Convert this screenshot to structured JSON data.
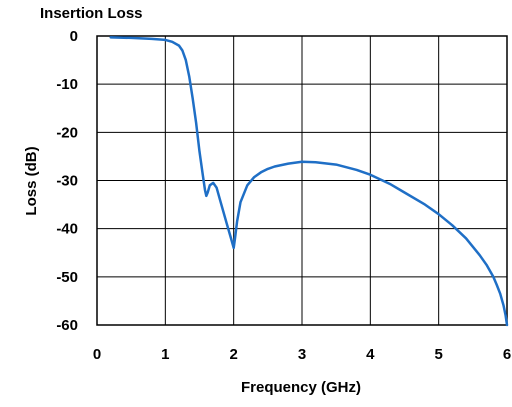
{
  "chart_data": {
    "type": "line",
    "title": "Insertion Loss",
    "xlabel": "Frequency (GHz)",
    "ylabel": "Loss (dB)",
    "xlim": [
      0,
      6
    ],
    "ylim": [
      -60,
      0
    ],
    "xticks": [
      0,
      1,
      2,
      3,
      4,
      5,
      6
    ],
    "yticks": [
      0,
      -10,
      -20,
      -30,
      -40,
      -50,
      -60
    ],
    "grid": true,
    "series_color": "#1f6fc6",
    "series": [
      {
        "x": [
          0.2,
          0.5,
          0.8,
          1.0,
          1.1,
          1.2,
          1.25,
          1.3,
          1.35,
          1.4,
          1.45,
          1.5,
          1.55,
          1.58,
          1.6,
          1.62,
          1.65,
          1.7,
          1.75,
          1.8,
          1.85,
          1.9,
          1.95,
          2.0,
          2.02,
          2.05,
          2.1,
          2.2,
          2.3,
          2.4,
          2.5,
          2.6,
          2.8,
          3.0,
          3.2,
          3.5,
          3.8,
          4.0,
          4.3,
          4.5,
          4.8,
          5.0,
          5.2,
          5.4,
          5.6,
          5.7,
          5.8,
          5.85,
          5.9,
          5.95,
          5.98,
          6.0
        ],
        "y": [
          -0.3,
          -0.4,
          -0.6,
          -0.8,
          -1.2,
          -2.0,
          -3.0,
          -5.0,
          -8.5,
          -13.0,
          -18.0,
          -24.0,
          -29.0,
          -32.0,
          -33.2,
          -32.5,
          -31.0,
          -30.5,
          -31.5,
          -34.0,
          -36.5,
          -39.0,
          -41.5,
          -44.0,
          -42.0,
          -38.5,
          -34.5,
          -31.0,
          -29.3,
          -28.3,
          -27.6,
          -27.1,
          -26.5,
          -26.1,
          -26.2,
          -26.7,
          -27.8,
          -28.8,
          -30.8,
          -32.5,
          -35.0,
          -37.0,
          -39.3,
          -42.0,
          -45.5,
          -47.5,
          -50.0,
          -51.7,
          -53.5,
          -56.0,
          -58.0,
          -60.0
        ]
      }
    ]
  }
}
